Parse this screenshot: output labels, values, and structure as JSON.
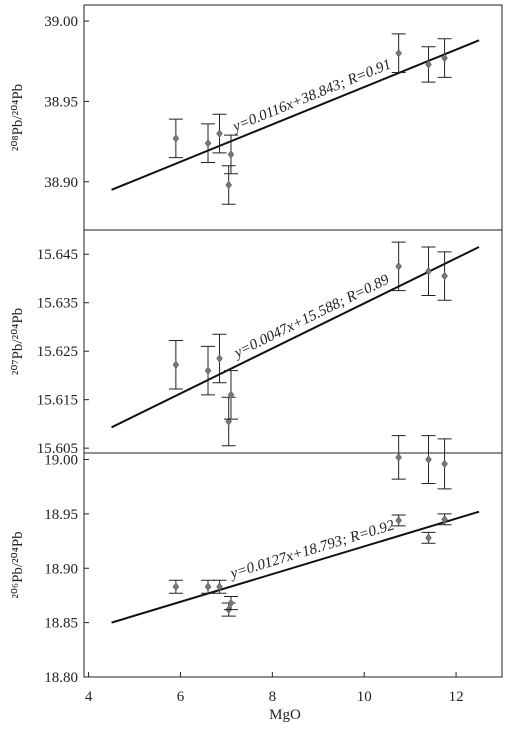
{
  "chart_data": [
    {
      "type": "scatter",
      "ylabel": "²⁰⁸Pb/²⁰⁴Pb",
      "xlim": [
        3.9,
        13
      ],
      "ylim": [
        38.87,
        39.01
      ],
      "yticks": [
        {
          "value": 38.9,
          "label": "38.90"
        },
        38.95,
        {
          "value": 39.0,
          "label": "39.00"
        }
      ],
      "series": [
        {
          "color": "#777777",
          "x": [
            5.9,
            6.6,
            6.85,
            7.05,
            7.1,
            10.75,
            11.4,
            11.75
          ],
          "values": [
            38.927,
            38.924,
            38.93,
            38.898,
            38.917,
            38.98,
            38.973,
            38.977
          ],
          "errors": [
            0.012,
            0.012,
            0.012,
            0.012,
            0.012,
            0.012,
            0.011,
            0.012
          ]
        }
      ],
      "fit_x": [
        4.5,
        12.5
      ],
      "fit_y": [
        38.895,
        38.988
      ],
      "annotation": "y=0.0116x+38.843; R=0.91"
    },
    {
      "type": "scatter",
      "ylabel": "²⁰⁷Pb/²⁰⁴Pb",
      "xlim": [
        3.9,
        13
      ],
      "ylim": [
        15.604,
        15.65
      ],
      "yticks": [
        15.605,
        15.615,
        15.625,
        15.635,
        15.645
      ],
      "series": [
        {
          "color": "#777777",
          "x": [
            5.9,
            6.6,
            6.85,
            7.05,
            7.1,
            10.75,
            11.4,
            11.75
          ],
          "values": [
            15.6222,
            15.621,
            15.6235,
            15.6105,
            15.616,
            15.6425,
            15.6415,
            15.6405
          ],
          "errors": [
            0.005,
            0.005,
            0.005,
            0.005,
            0.005,
            0.005,
            0.005,
            0.005
          ]
        }
      ],
      "fit_x": [
        4.5,
        12.5
      ],
      "fit_y": [
        15.6093,
        15.6465
      ],
      "annotation": "y=0.0047x+15.588; R=0.89"
    },
    {
      "type": "scatter",
      "ylabel": "²⁰⁶Pb/²⁰⁴Pb",
      "xlabel": "MgO",
      "xlim": [
        3.9,
        13
      ],
      "ylim": [
        18.8,
        19.006
      ],
      "xticks": [
        4,
        6,
        8,
        10,
        12
      ],
      "yticks": [
        {
          "value": 18.8,
          "label": "18.80"
        },
        18.85,
        {
          "value": 18.9,
          "label": "18.90"
        },
        18.95,
        {
          "value": 19.0,
          "label": "19.00"
        }
      ],
      "series": [
        {
          "color": "#777777",
          "x": [
            5.9,
            6.6,
            6.85,
            7.05,
            7.1,
            10.75,
            11.4,
            11.75
          ],
          "values": [
            18.883,
            18.883,
            18.883,
            18.862,
            18.868,
            18.944,
            18.928,
            18.945
          ],
          "errors": [
            0.006,
            0.006,
            0.006,
            0.006,
            0.006,
            0.005,
            0.005,
            0.005
          ]
        },
        {
          "color": "#777777",
          "x": [
            10.75,
            11.4,
            11.75
          ],
          "values": [
            19.002,
            19.0,
            18.996
          ],
          "errors": [
            0.02,
            0.022,
            0.023
          ]
        }
      ],
      "fit_x": [
        4.5,
        12.5
      ],
      "fit_y": [
        18.85,
        18.952
      ],
      "annotation": "y=0.0127x+18.793; R=0.92"
    }
  ]
}
